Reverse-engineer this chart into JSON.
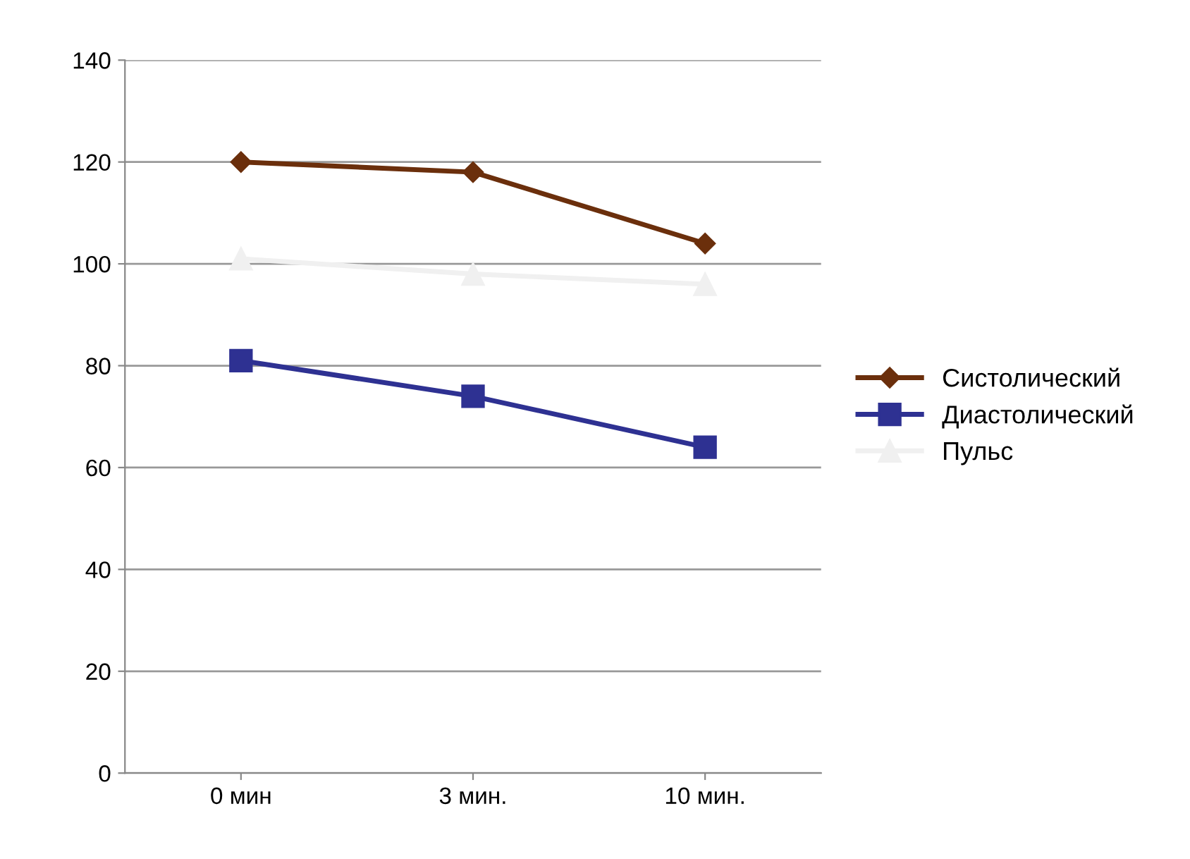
{
  "chart_data": {
    "type": "line",
    "categories": [
      "0 мин",
      "3 мин.",
      "10 мин."
    ],
    "series": [
      {
        "name": "Систолический",
        "color": "#6b2f0c",
        "marker": "diamond",
        "values": [
          120,
          118,
          104
        ]
      },
      {
        "name": "Диастолический",
        "color": "#2e3192",
        "marker": "square",
        "values": [
          81,
          74,
          64
        ]
      },
      {
        "name": "Пульс",
        "color": "#f0f0f0",
        "marker": "triangle",
        "values": [
          101,
          98,
          96
        ]
      }
    ],
    "ylim": [
      0,
      140
    ],
    "yticks": [
      0,
      20,
      40,
      60,
      80,
      100,
      120,
      140
    ],
    "grid": "y",
    "legend": "right"
  }
}
